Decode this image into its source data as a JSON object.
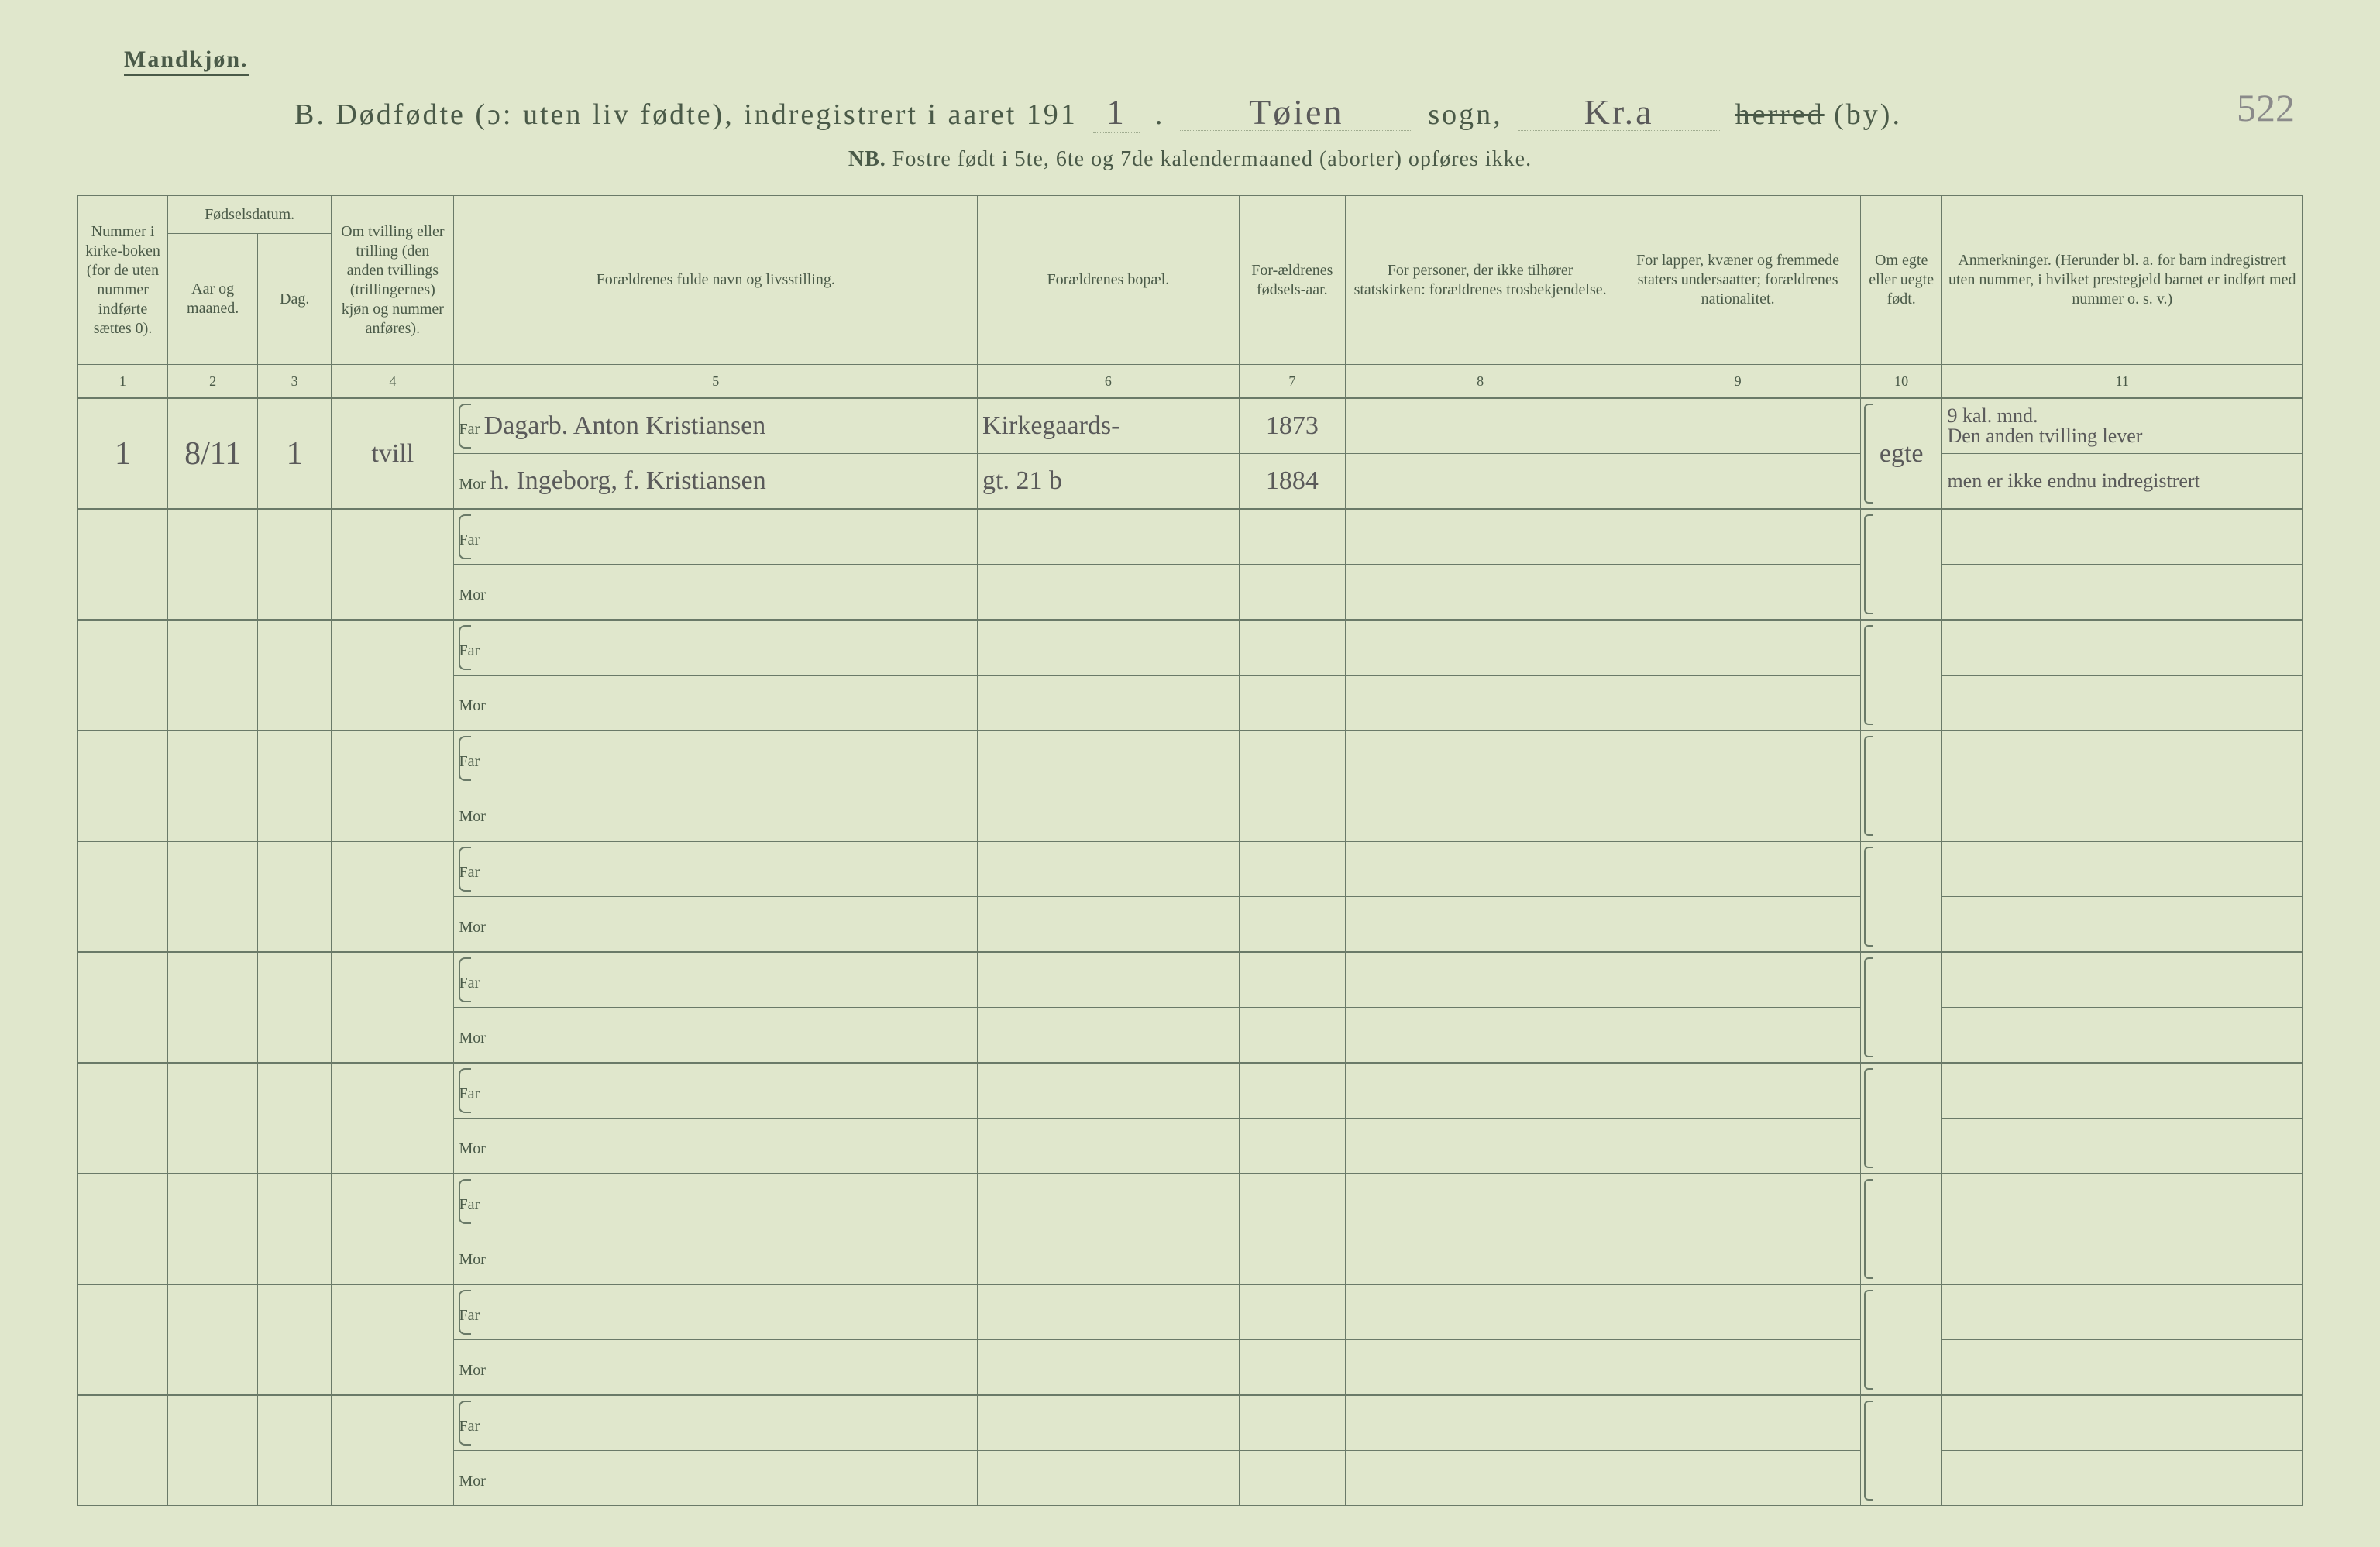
{
  "header": {
    "gender": "Mandkjøn.",
    "title_prefix": "B.  Dødfødte (ɔ: uten liv fødte), indregistrert i aaret 191",
    "year_suffix": "1",
    "sogn_label": "sogn,",
    "sogn_value": "Tøien",
    "herred_label_strike": "herred",
    "herred_label_tail": " (by).",
    "herred_value": "Kr.a",
    "page_number": "522",
    "nb_label": "NB.",
    "nb_text": "Fostre født i 5te, 6te og 7de kalendermaaned (aborter) opføres ikke."
  },
  "columns": {
    "c1": "Nummer i kirke-boken (for de uten nummer indførte sættes 0).",
    "c2a": "Fødselsdatum.",
    "c2b_aar": "Aar og maaned.",
    "c2b_dag": "Dag.",
    "c4": "Om tvilling eller trilling (den anden tvillings (trillingernes) kjøn og nummer anføres).",
    "c5": "Forældrenes fulde navn og livsstilling.",
    "c6": "Forældrenes bopæl.",
    "c7": "For-ældrenes fødsels-aar.",
    "c8": "For personer, der ikke tilhører statskirken: forældrenes trosbekjendelse.",
    "c9": "For lapper, kvæner og fremmede staters undersaatter; forældrenes nationalitet.",
    "c10": "Om egte eller uegte født.",
    "c11": "Anmerkninger.  (Herunder bl. a. for barn indregistrert uten nummer, i hvilket prestegjeld barnet er indført med nummer o. s. v.)"
  },
  "colnums": [
    "1",
    "2",
    "3",
    "4",
    "5",
    "6",
    "7",
    "8",
    "9",
    "10",
    "11"
  ],
  "row_labels": {
    "far": "Far",
    "mor": "Mor"
  },
  "entries": [
    {
      "num": "1",
      "aar_maaned": "8/11",
      "dag": "1",
      "tvilling": "tvill",
      "far_name": "Dagarb. Anton Kristiansen",
      "mor_name": "h. Ingeborg, f. Kristiansen",
      "far_bopel": "Kirkegaards-",
      "mor_bopel": "gt. 21 b",
      "far_aar": "1873",
      "mor_aar": "1884",
      "egte": "egte",
      "anm1": "9 kal. mnd.",
      "anm2": "Den anden tvilling lever",
      "anm3": "men er ikke endnu indregistrert"
    }
  ]
}
